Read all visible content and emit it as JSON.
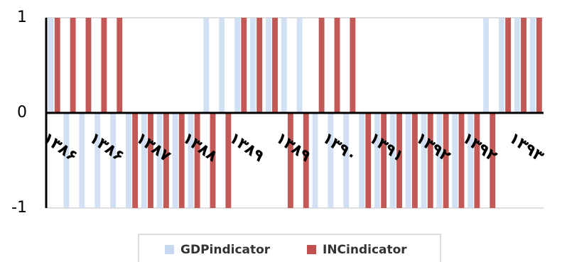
{
  "chart_data": {
    "type": "bar",
    "categories": [
      "۱۳۸۶",
      null,
      null,
      "۱۳۸۶",
      null,
      null,
      "۱۳۸۷",
      null,
      null,
      "۱۳۸۸",
      null,
      null,
      "۱۳۸۹",
      null,
      null,
      "۱۳۸۹",
      null,
      null,
      "۱۳۹۰",
      null,
      null,
      "۱۳۹۱",
      null,
      null,
      "۱۳۹۲",
      null,
      null,
      "۱۳۹۲",
      null,
      null,
      "۱۳۹۳",
      null
    ],
    "series": [
      {
        "name": "GDPindicator",
        "color": "#c6d9f0",
        "values": [
          1,
          -1,
          -1,
          -1,
          -1,
          -1,
          -1,
          -1,
          -1,
          -1,
          1,
          1,
          1,
          1,
          1,
          1,
          1,
          -1,
          -1,
          -1,
          -1,
          -1,
          -1,
          -1,
          -1,
          -1,
          -1,
          -1,
          1,
          1,
          1,
          1
        ]
      },
      {
        "name": "INCindicator",
        "color": "#c0504d",
        "values": [
          1,
          1,
          1,
          1,
          1,
          -1,
          -1,
          -1,
          -1,
          -1,
          -1,
          -1,
          1,
          1,
          1,
          -1,
          -1,
          1,
          1,
          1,
          -1,
          -1,
          -1,
          -1,
          -1,
          -1,
          -1,
          -1,
          -1,
          1,
          1,
          1
        ]
      }
    ],
    "ylim": [
      -1,
      1
    ],
    "yticks": [
      -1,
      0,
      1
    ],
    "grid": true,
    "legend": "bottom"
  }
}
